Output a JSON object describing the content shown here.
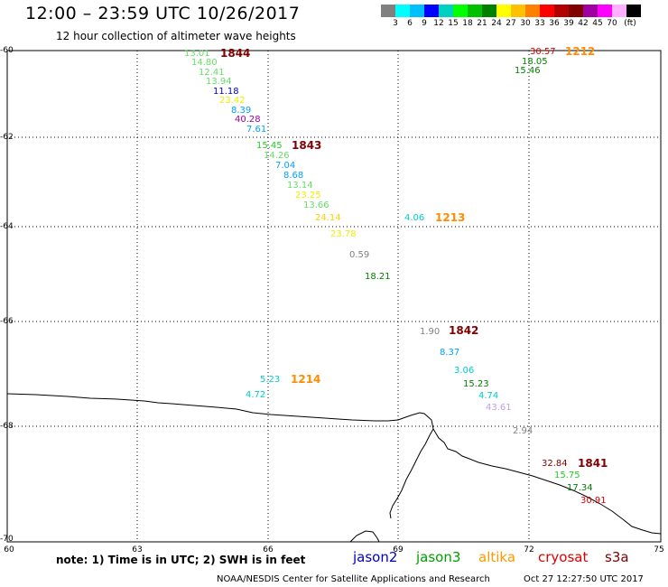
{
  "header": {
    "title": "12:00 – 23:59 UTC 10/26/2017",
    "subtitle": "12 hour collection of altimeter wave heights"
  },
  "color_scale": {
    "colors": [
      "#808080",
      "#00ffff",
      "#00bfff",
      "#0000ff",
      "#00d0c0",
      "#00ff00",
      "#00c000",
      "#008000",
      "#ffff00",
      "#ffc000",
      "#ff8000",
      "#ff0000",
      "#b00000",
      "#800000",
      "#a000a0",
      "#ff00ff",
      "#ffb0ff",
      "#000000"
    ],
    "labels": [
      "3",
      "6",
      "9",
      "12",
      "15",
      "18",
      "21",
      "24",
      "27",
      "30",
      "33",
      "36",
      "39",
      "42",
      "45",
      "70"
    ],
    "unit": "(ft)"
  },
  "map": {
    "lat_labels": [
      "-60",
      "-62",
      "-64",
      "-66",
      "-68",
      "-70"
    ],
    "lon_labels": [
      "60",
      "63",
      "66",
      "69",
      "72",
      "75"
    ],
    "passes": [
      {
        "id": "1844",
        "color": "#800000"
      },
      {
        "id": "1843",
        "color": "#800000"
      },
      {
        "id": "1213",
        "color": "#ff8c00"
      },
      {
        "id": "1212",
        "color": "#ff8c00"
      },
      {
        "id": "1842",
        "color": "#800000"
      },
      {
        "id": "1214",
        "color": "#ff8c00"
      },
      {
        "id": "1841",
        "color": "#800000"
      }
    ],
    "observations": [
      {
        "text": "13.01",
        "color": "#66dd66"
      },
      {
        "text": "14.80",
        "color": "#66dd66"
      },
      {
        "text": "12.41",
        "color": "#66dd66"
      },
      {
        "text": "13.94",
        "color": "#66dd66"
      },
      {
        "text": "11.18",
        "color": "#0000cc"
      },
      {
        "text": "23.42",
        "color": "#eeee00"
      },
      {
        "text": "8.39",
        "color": "#00a0ff"
      },
      {
        "text": "40.28",
        "color": "#a000a0"
      },
      {
        "text": "7.61",
        "color": "#00a0ff"
      },
      {
        "text": "15.45",
        "color": "#22cc22"
      },
      {
        "text": "14.26",
        "color": "#66dd66"
      },
      {
        "text": "7.04",
        "color": "#00a0ff"
      },
      {
        "text": "8.68",
        "color": "#00a0ff"
      },
      {
        "text": "13.14",
        "color": "#66dd66"
      },
      {
        "text": "23.25",
        "color": "#eeee00"
      },
      {
        "text": "13.66",
        "color": "#66dd66"
      },
      {
        "text": "24.14",
        "color": "#ffcc00"
      },
      {
        "text": "23.78",
        "color": "#eeee00"
      },
      {
        "text": "0.59",
        "color": "#808080"
      },
      {
        "text": "18.21",
        "color": "#008000"
      },
      {
        "text": "4.06",
        "color": "#00cccc"
      },
      {
        "text": "30.57",
        "color": "#dd0000"
      },
      {
        "text": "18.05",
        "color": "#008000"
      },
      {
        "text": "15.46",
        "color": "#008000"
      },
      {
        "text": "1.90",
        "color": "#808080"
      },
      {
        "text": "8.37",
        "color": "#00a0ff"
      },
      {
        "text": "3.06",
        "color": "#00cccc"
      },
      {
        "text": "15.23",
        "color": "#008000"
      },
      {
        "text": "4.74",
        "color": "#00cccc"
      },
      {
        "text": "43.61",
        "color": "#c0a0e0"
      },
      {
        "text": "5.23",
        "color": "#00cccc"
      },
      {
        "text": "4.72",
        "color": "#00cccc"
      },
      {
        "text": "2.94",
        "color": "#808080"
      },
      {
        "text": "32.84",
        "color": "#800000"
      },
      {
        "text": "15.75",
        "color": "#22cc22"
      },
      {
        "text": "17.34",
        "color": "#008000"
      },
      {
        "text": "30.91",
        "color": "#dd0000"
      }
    ]
  },
  "footer": {
    "note": "note: 1) Time is in UTC; 2) SWH is in feet",
    "legend": [
      {
        "name": "jason2",
        "color": "#0000cc"
      },
      {
        "name": "jason3",
        "color": "#00a000"
      },
      {
        "name": "altika",
        "color": "#ff9900"
      },
      {
        "name": "cryosat",
        "color": "#dd0000"
      },
      {
        "name": "s3a",
        "color": "#800000"
      }
    ],
    "credit": "NOAA/NESDIS Center for Satellite Applications and Research",
    "timestamp": "Oct 27 12:27:50 UTC 2017"
  }
}
